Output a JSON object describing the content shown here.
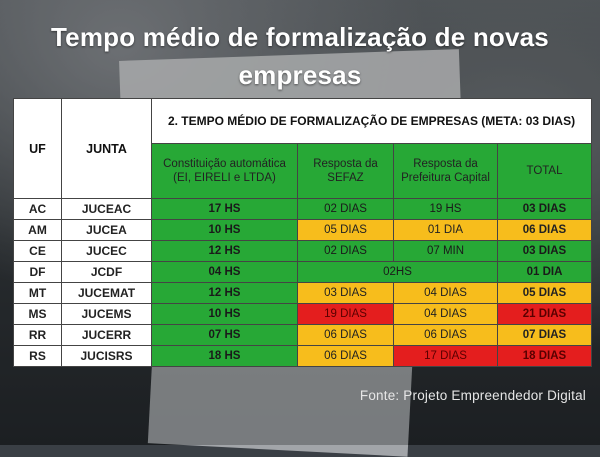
{
  "title": {
    "line1": "Tempo médio de formalização de novas",
    "line2": "empresas"
  },
  "table": {
    "header_uf": "UF",
    "header_junta": "JUNTA",
    "header_main": "2. TEMPO MÉDIO DE FORMALIZAÇÃO DE EMPRESAS (META: 03 DIAS)",
    "col_constituicao": "Constituição automática (EI, EIRELI e LTDA)",
    "col_sefaz": "Resposta da SEFAZ",
    "col_prefeitura": "Resposta da Prefeitura Capital",
    "col_total": "TOTAL",
    "rows": [
      {
        "uf": "AC",
        "junta": "JUCEAC",
        "const": "17 HS",
        "sefaz": "02 DIAS",
        "pref": "19 HS",
        "total": "03 DIAS"
      },
      {
        "uf": "AM",
        "junta": "JUCEA",
        "const": "10 HS",
        "sefaz": "05 DIAS",
        "pref": "01 DIA",
        "total": "06 DIAS"
      },
      {
        "uf": "CE",
        "junta": "JUCEC",
        "const": "12 HS",
        "sefaz": "02 DIAS",
        "pref": "07 MIN",
        "total": "03 DIAS"
      },
      {
        "uf": "DF",
        "junta": "JCDF",
        "const": "04 HS",
        "merged": "02HS",
        "total": "01 DIA"
      },
      {
        "uf": "MT",
        "junta": "JUCEMAT",
        "const": "12 HS",
        "sefaz": "03 DIAS",
        "pref": "04 DIAS",
        "total": "05 DIAS"
      },
      {
        "uf": "MS",
        "junta": "JUCEMS",
        "const": "10 HS",
        "sefaz": "19 DIAS",
        "pref": "04 DIAS",
        "total": "21 DIAS"
      },
      {
        "uf": "RR",
        "junta": "JUCERR",
        "const": "07 HS",
        "sefaz": "06 DIAS",
        "pref": "06 DIAS",
        "total": "07 DIAS"
      },
      {
        "uf": "RS",
        "junta": "JUCISRS",
        "const": "18 HS",
        "sefaz": "06 DIAS",
        "pref": "17 DIAS",
        "total": "18 DIAS"
      }
    ]
  },
  "footer": "Fonte: Projeto Empreendedor Digital",
  "colors": {
    "green": "#27a836",
    "yellow": "#f7bd1c",
    "red": "#e41e1e"
  }
}
